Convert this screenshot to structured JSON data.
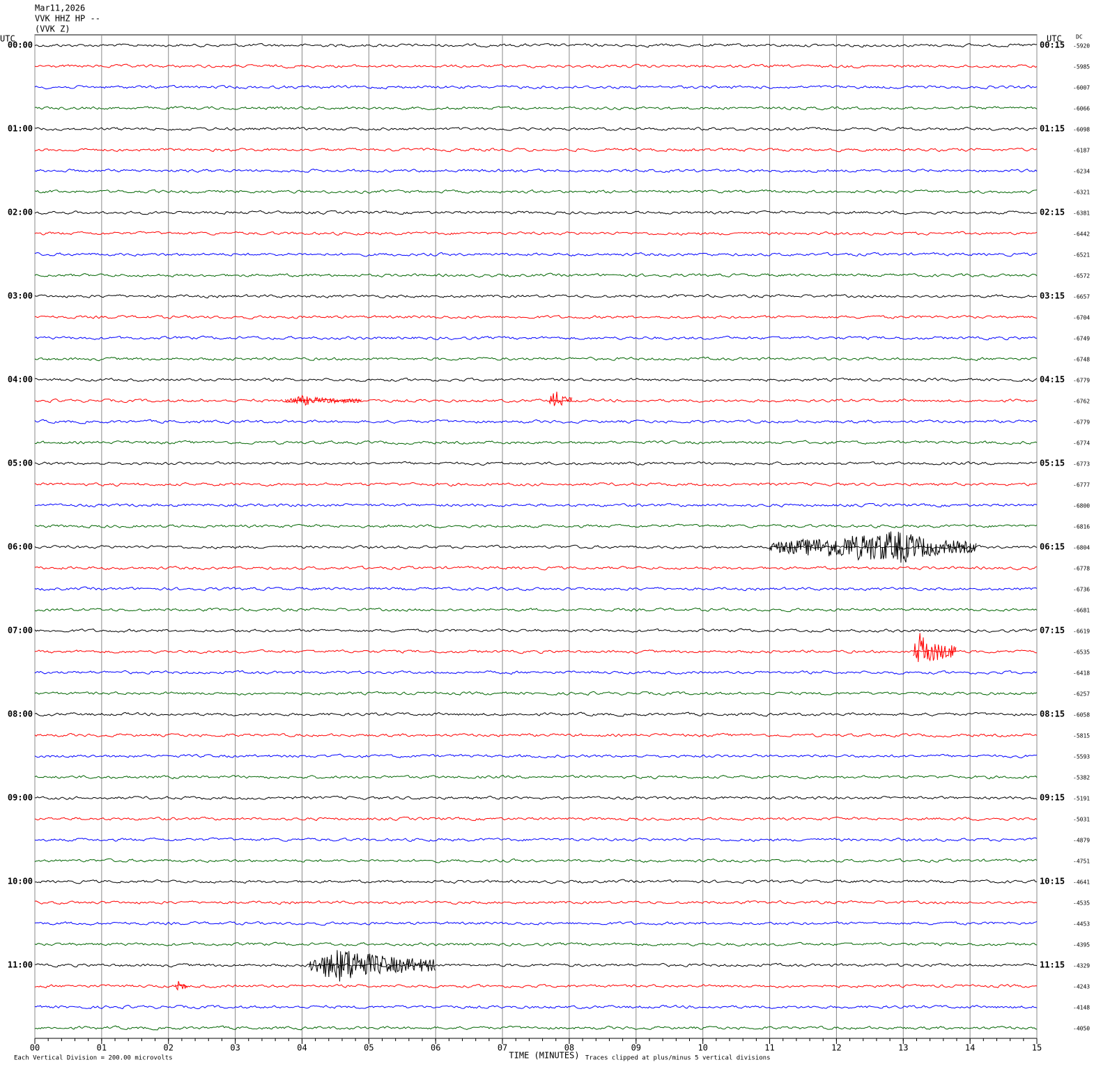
{
  "chart_data": {
    "type": "helicorder",
    "title_lines": [
      "Mar11,2026",
      "VVK HHZ HP --",
      "(VVK Z)"
    ],
    "left_axis_label": "UTC",
    "right_axis_label": "UTC",
    "dc_label": "DC",
    "colors": [
      "#000000",
      "#ff0000",
      "#0000ff",
      "#006400"
    ],
    "start_labels": [
      "00:00",
      null,
      null,
      null,
      "01:00",
      null,
      null,
      null,
      "02:00",
      null,
      null,
      null,
      "03:00",
      null,
      null,
      null,
      "04:00",
      null,
      null,
      null,
      "05:00",
      null,
      null,
      null,
      "06:00",
      null,
      null,
      null,
      "07:00",
      null,
      null,
      null,
      "08:00",
      null,
      null,
      null,
      "09:00",
      null,
      null,
      null,
      "10:00",
      null,
      null,
      null,
      "11:00",
      null,
      null,
      null
    ],
    "end_labels": [
      "00:15",
      null,
      null,
      null,
      "01:15",
      null,
      null,
      null,
      "02:15",
      null,
      null,
      null,
      "03:15",
      null,
      null,
      null,
      "04:15",
      null,
      null,
      null,
      "05:15",
      null,
      null,
      null,
      "06:15",
      null,
      null,
      null,
      "07:15",
      null,
      null,
      null,
      "08:15",
      null,
      null,
      null,
      "09:15",
      null,
      null,
      null,
      "10:15",
      null,
      null,
      null,
      "11:15",
      null,
      null,
      null
    ],
    "dc": [
      -5920,
      -5985,
      -6007,
      -6066,
      -6098,
      -6187,
      -6234,
      -6321,
      -6381,
      -6442,
      -6521,
      -6572,
      -6657,
      -6704,
      -6749,
      -6748,
      -6779,
      -6762,
      -6779,
      -6774,
      -6773,
      -6777,
      -6800,
      -6816,
      -6804,
      -6778,
      -6736,
      -6681,
      -6619,
      -6535,
      -6418,
      -6257,
      -6058,
      -5815,
      -5593,
      -5382,
      -5191,
      -5031,
      -4879,
      -4751,
      -4641,
      -4535,
      -4453,
      -4395,
      -4329,
      -4243,
      -4148,
      -4050
    ],
    "xlim": [
      0,
      15
    ],
    "xticks": [
      {
        "value": 0,
        "label": "00"
      },
      {
        "value": 1,
        "label": "01"
      },
      {
        "value": 2,
        "label": "02"
      },
      {
        "value": 3,
        "label": "03"
      },
      {
        "value": 4,
        "label": "04"
      },
      {
        "value": 5,
        "label": "05"
      },
      {
        "value": 6,
        "label": "06"
      },
      {
        "value": 7,
        "label": "07"
      },
      {
        "value": 8,
        "label": "08"
      },
      {
        "value": 9,
        "label": "09"
      },
      {
        "value": 10,
        "label": "10"
      },
      {
        "value": 11,
        "label": "11"
      },
      {
        "value": 12,
        "label": "12"
      },
      {
        "value": 13,
        "label": "13"
      },
      {
        "value": 14,
        "label": "14"
      },
      {
        "value": 15,
        "label": "15"
      }
    ],
    "xlabel": "TIME (MINUTES)",
    "scale_note": "Each Vertical Division =  200.00 microvolts",
    "clip_note": "Traces clipped at plus/minus 5 vertical divisions",
    "events": [
      {
        "trace": 17,
        "start": 3.75,
        "peak": 4.0,
        "end": 4.9,
        "amplitude": 0.25
      },
      {
        "trace": 17,
        "start": 7.7,
        "peak": 7.8,
        "end": 8.05,
        "amplitude": 0.5
      },
      {
        "trace": 24,
        "start": 11.0,
        "peak": 13.0,
        "end": 14.1,
        "amplitude": 0.8
      },
      {
        "trace": 29,
        "start": 13.15,
        "peak": 13.25,
        "end": 13.8,
        "amplitude": 0.9
      },
      {
        "trace": 44,
        "start": 4.1,
        "peak": 4.65,
        "end": 6.0,
        "amplitude": 0.9
      },
      {
        "trace": 45,
        "start": 2.1,
        "peak": 2.15,
        "end": 2.3,
        "amplitude": 0.3
      }
    ]
  }
}
